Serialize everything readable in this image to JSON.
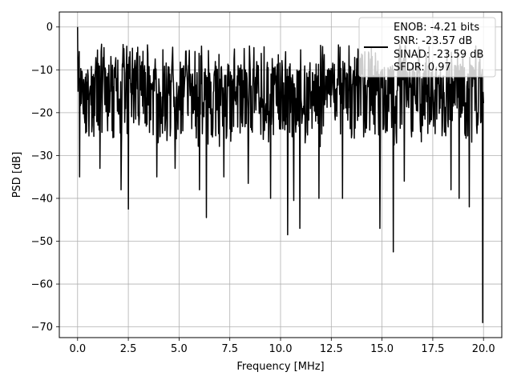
{
  "chart_data": {
    "type": "line",
    "xlabel": "Frequency [MHz]",
    "ylabel": "PSD [dB]",
    "xlim": [
      -0.9,
      20.9
    ],
    "ylim": [
      -72.5,
      3.5
    ],
    "xticks": [
      0.0,
      2.5,
      5.0,
      7.5,
      10.0,
      12.5,
      15.0,
      17.5,
      20.0
    ],
    "xtick_labels": [
      "0.0",
      "2.5",
      "5.0",
      "7.5",
      "10.0",
      "12.5",
      "15.0",
      "17.5",
      "20.0"
    ],
    "yticks": [
      0,
      -10,
      -20,
      -30,
      -40,
      -50,
      -60,
      -70
    ],
    "ytick_labels": [
      "0",
      "−10",
      "−20",
      "−30",
      "−40",
      "−50",
      "−60",
      "−70"
    ],
    "grid": true,
    "legend": {
      "placement": "top-right",
      "entries": [
        "ENOB: -4.21 bits",
        "SNR: -23.57 dB",
        "SINAD: -23.59 dB",
        "SFDR: 0.97"
      ]
    },
    "series": [
      {
        "color": "#000000",
        "x_start": 0.0,
        "x_end": 20.0,
        "n_points": 1000,
        "typical_level_db": -16,
        "band_top_db": -8,
        "band_bottom_db": -28,
        "peak": {
          "x": 0.0,
          "y": 0.0
        },
        "dips": [
          {
            "x": 0.1,
            "y": -35
          },
          {
            "x": 1.1,
            "y": -33
          },
          {
            "x": 2.15,
            "y": -38
          },
          {
            "x": 2.5,
            "y": -42.5
          },
          {
            "x": 3.9,
            "y": -35
          },
          {
            "x": 4.8,
            "y": -33
          },
          {
            "x": 6.0,
            "y": -38
          },
          {
            "x": 6.35,
            "y": -44.5
          },
          {
            "x": 7.2,
            "y": -35
          },
          {
            "x": 8.4,
            "y": -36.5
          },
          {
            "x": 9.5,
            "y": -40
          },
          {
            "x": 10.35,
            "y": -48.5
          },
          {
            "x": 10.65,
            "y": -40.5
          },
          {
            "x": 10.95,
            "y": -47
          },
          {
            "x": 11.9,
            "y": -40
          },
          {
            "x": 13.05,
            "y": -40
          },
          {
            "x": 14.9,
            "y": -47
          },
          {
            "x": 15.55,
            "y": -52.5
          },
          {
            "x": 16.1,
            "y": -36
          },
          {
            "x": 18.4,
            "y": -38
          },
          {
            "x": 18.8,
            "y": -40
          },
          {
            "x": 19.3,
            "y": -42
          },
          {
            "x": 19.95,
            "y": -69
          }
        ]
      }
    ]
  }
}
